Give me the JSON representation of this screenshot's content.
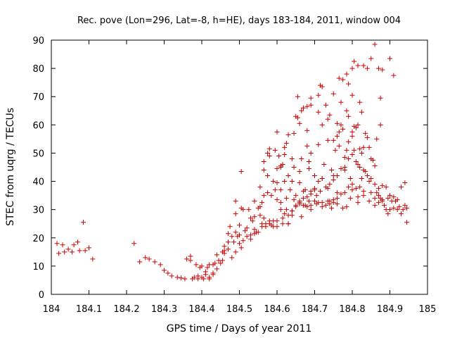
{
  "chart_data": {
    "type": "scatter",
    "title": "Rec. pove (Lon=296, Lat=-8, h=HE), days 183-184, 2011, window 004",
    "xlabel": "GPS time / Days of year 2011",
    "ylabel": "STEC from uqrg / TECUs",
    "xlim": [
      184,
      185
    ],
    "ylim": [
      0,
      90
    ],
    "xticks": [
      "184",
      "184.1",
      "184.2",
      "184.3",
      "184.4",
      "184.5",
      "184.6",
      "184.7",
      "184.8",
      "184.9",
      "185"
    ],
    "yticks": [
      "0",
      "10",
      "20",
      "30",
      "40",
      "50",
      "60",
      "70",
      "80",
      "90"
    ],
    "grid": false,
    "legend": "none",
    "marker": "+",
    "color": "#cc0000",
    "points": [
      [
        184.015,
        18
      ],
      [
        184.02,
        14.5
      ],
      [
        184.03,
        17.5
      ],
      [
        184.035,
        15
      ],
      [
        184.045,
        16
      ],
      [
        184.055,
        15
      ],
      [
        184.06,
        17.5
      ],
      [
        184.07,
        18.5
      ],
      [
        184.075,
        15.5
      ],
      [
        184.085,
        25.5
      ],
      [
        184.09,
        15.5
      ],
      [
        184.1,
        16.5
      ],
      [
        184.11,
        12.5
      ],
      [
        184.22,
        18
      ],
      [
        184.235,
        11.5
      ],
      [
        184.25,
        13
      ],
      [
        184.26,
        12.5
      ],
      [
        184.275,
        11.5
      ],
      [
        184.29,
        10.5
      ],
      [
        184.3,
        8.5
      ],
      [
        184.31,
        7.5
      ],
      [
        184.32,
        6.5
      ],
      [
        184.335,
        6
      ],
      [
        184.345,
        5.8
      ],
      [
        184.355,
        5.5
      ],
      [
        184.36,
        12.5
      ],
      [
        184.37,
        12
      ],
      [
        184.37,
        13.5
      ],
      [
        184.375,
        5.5
      ],
      [
        184.385,
        10.5
      ],
      [
        184.39,
        5.5
      ],
      [
        184.395,
        9.5
      ],
      [
        184.4,
        10
      ],
      [
        184.405,
        5.5
      ],
      [
        184.41,
        8
      ],
      [
        184.415,
        9.5
      ],
      [
        184.42,
        10.5
      ],
      [
        184.42,
        6
      ],
      [
        184.43,
        7.5
      ],
      [
        184.43,
        10.5
      ],
      [
        184.435,
        11
      ],
      [
        184.44,
        14
      ],
      [
        184.445,
        12
      ],
      [
        184.455,
        12
      ],
      [
        184.455,
        15
      ],
      [
        184.46,
        17
      ],
      [
        184.46,
        15.5
      ],
      [
        184.47,
        18.5
      ],
      [
        184.47,
        21.5
      ],
      [
        184.475,
        24
      ],
      [
        184.48,
        20.5
      ],
      [
        184.485,
        18.5
      ],
      [
        184.49,
        22
      ],
      [
        184.49,
        28.5
      ],
      [
        184.49,
        33
      ],
      [
        184.495,
        20.5
      ],
      [
        184.5,
        21
      ],
      [
        184.5,
        24.5
      ],
      [
        184.505,
        16.5
      ],
      [
        184.505,
        30.5
      ],
      [
        184.505,
        43.5
      ],
      [
        184.51,
        30
      ],
      [
        184.515,
        22.5
      ],
      [
        184.52,
        23.5
      ],
      [
        184.525,
        30
      ],
      [
        184.53,
        19.5
      ],
      [
        184.53,
        27
      ],
      [
        184.535,
        26
      ],
      [
        184.54,
        21.5
      ],
      [
        184.54,
        27.5
      ],
      [
        184.545,
        22
      ],
      [
        184.55,
        30.5
      ],
      [
        184.555,
        28
      ],
      [
        184.56,
        24
      ],
      [
        184.56,
        32.5
      ],
      [
        184.565,
        35
      ],
      [
        184.565,
        44
      ],
      [
        184.565,
        47
      ],
      [
        184.57,
        25
      ],
      [
        184.575,
        36
      ],
      [
        184.575,
        50
      ],
      [
        184.58,
        49
      ],
      [
        184.58,
        51.5
      ],
      [
        184.585,
        24.5
      ],
      [
        184.585,
        35
      ],
      [
        184.59,
        40
      ],
      [
        184.595,
        37
      ],
      [
        184.595,
        51
      ],
      [
        184.6,
        24
      ],
      [
        184.6,
        33.5
      ],
      [
        184.6,
        39.5
      ],
      [
        184.6,
        44.5
      ],
      [
        184.6,
        57.5
      ],
      [
        184.605,
        49
      ],
      [
        184.61,
        32.5
      ],
      [
        184.61,
        37
      ],
      [
        184.61,
        45.5
      ],
      [
        184.615,
        25
      ],
      [
        184.615,
        46
      ],
      [
        184.62,
        40
      ],
      [
        184.62,
        52
      ],
      [
        184.625,
        30
      ],
      [
        184.625,
        34
      ],
      [
        184.625,
        53.5
      ],
      [
        184.63,
        25
      ],
      [
        184.63,
        42
      ],
      [
        184.635,
        37
      ],
      [
        184.64,
        29.5
      ],
      [
        184.64,
        40
      ],
      [
        184.64,
        48
      ],
      [
        184.645,
        33.5
      ],
      [
        184.645,
        45
      ],
      [
        184.65,
        35
      ],
      [
        184.65,
        63
      ],
      [
        184.655,
        62.5
      ],
      [
        184.655,
        70
      ],
      [
        184.66,
        32
      ],
      [
        184.66,
        39.5
      ],
      [
        184.66,
        43.5
      ],
      [
        184.665,
        27.5
      ],
      [
        184.665,
        48
      ],
      [
        184.665,
        65
      ],
      [
        184.67,
        36.5
      ],
      [
        184.675,
        31.5
      ],
      [
        184.675,
        37
      ],
      [
        184.68,
        52.5
      ],
      [
        184.68,
        58
      ],
      [
        184.685,
        33
      ],
      [
        184.685,
        44.5
      ],
      [
        184.685,
        47
      ],
      [
        184.69,
        30
      ],
      [
        184.69,
        35.5
      ],
      [
        184.69,
        50
      ],
      [
        184.69,
        69.5
      ],
      [
        184.7,
        42
      ],
      [
        184.7,
        37
      ],
      [
        184.705,
        35
      ],
      [
        184.705,
        32
      ],
      [
        184.71,
        53
      ],
      [
        184.71,
        64.5
      ],
      [
        184.715,
        36.5
      ],
      [
        184.715,
        74
      ],
      [
        184.72,
        32.5
      ],
      [
        184.72,
        41
      ],
      [
        184.72,
        60
      ],
      [
        184.725,
        46
      ],
      [
        184.73,
        67
      ],
      [
        184.735,
        33
      ],
      [
        184.735,
        37.5
      ],
      [
        184.735,
        54.5
      ],
      [
        184.735,
        62
      ],
      [
        184.74,
        63.5
      ],
      [
        184.745,
        30.5
      ],
      [
        184.745,
        44
      ],
      [
        184.75,
        32.5
      ],
      [
        184.75,
        42
      ],
      [
        184.75,
        54.5
      ],
      [
        184.755,
        51
      ],
      [
        184.76,
        32
      ],
      [
        184.76,
        36
      ],
      [
        184.76,
        56
      ],
      [
        184.765,
        52.5
      ],
      [
        184.765,
        57.5
      ],
      [
        184.765,
        76.5
      ],
      [
        184.77,
        60
      ],
      [
        184.77,
        68
      ],
      [
        184.775,
        30.5
      ],
      [
        184.775,
        58.5
      ],
      [
        184.78,
        44
      ],
      [
        184.78,
        48.5
      ],
      [
        184.785,
        31
      ],
      [
        184.785,
        51
      ],
      [
        184.785,
        65
      ],
      [
        184.79,
        54
      ],
      [
        184.79,
        63
      ],
      [
        184.795,
        34
      ],
      [
        184.795,
        41
      ],
      [
        184.8,
        39
      ],
      [
        184.8,
        56
      ],
      [
        184.8,
        57.5
      ],
      [
        184.805,
        51
      ],
      [
        184.805,
        59.5
      ],
      [
        184.81,
        37.5
      ],
      [
        184.81,
        59
      ],
      [
        184.815,
        32.5
      ],
      [
        184.815,
        46
      ],
      [
        184.815,
        60
      ],
      [
        184.82,
        38
      ],
      [
        184.82,
        51.5
      ],
      [
        184.825,
        41
      ],
      [
        184.825,
        50
      ],
      [
        184.825,
        64.5
      ],
      [
        184.83,
        36.5
      ],
      [
        184.83,
        52
      ],
      [
        184.835,
        43.5
      ],
      [
        184.835,
        57
      ],
      [
        184.84,
        55.5
      ],
      [
        184.845,
        40
      ],
      [
        184.845,
        52
      ],
      [
        184.85,
        36
      ],
      [
        184.85,
        48
      ],
      [
        184.855,
        47.5
      ],
      [
        184.86,
        34
      ],
      [
        184.86,
        45.5
      ],
      [
        184.865,
        36
      ],
      [
        184.865,
        55
      ],
      [
        184.87,
        32.5
      ],
      [
        184.87,
        35
      ],
      [
        184.875,
        34
      ],
      [
        184.875,
        60
      ],
      [
        184.88,
        33.5
      ],
      [
        184.885,
        31.5
      ],
      [
        184.89,
        30
      ],
      [
        184.895,
        34
      ],
      [
        184.9,
        30
      ],
      [
        184.905,
        33
      ],
      [
        184.91,
        30.5
      ],
      [
        184.915,
        33
      ],
      [
        184.92,
        30
      ],
      [
        184.925,
        31
      ],
      [
        184.93,
        28.5
      ],
      [
        184.935,
        30
      ],
      [
        184.94,
        31.5
      ],
      [
        184.945,
        30.5
      ],
      [
        184.74,
        33
      ],
      [
        184.75,
        71
      ],
      [
        184.76,
        60.5
      ],
      [
        184.775,
        76
      ],
      [
        184.785,
        78
      ],
      [
        184.8,
        80
      ],
      [
        184.805,
        82.5
      ],
      [
        184.815,
        81
      ],
      [
        184.83,
        81
      ],
      [
        184.84,
        80
      ],
      [
        184.85,
        83.5
      ],
      [
        184.86,
        88.5
      ],
      [
        184.87,
        80
      ],
      [
        184.88,
        79.5
      ],
      [
        184.9,
        83.5
      ],
      [
        184.91,
        77.5
      ],
      [
        184.875,
        69.5
      ],
      [
        184.82,
        68
      ],
      [
        184.8,
        70.5
      ],
      [
        184.79,
        74.5
      ],
      [
        184.72,
        73.5
      ],
      [
        184.71,
        70.5
      ],
      [
        184.69,
        67
      ],
      [
        184.68,
        66.5
      ],
      [
        184.67,
        66
      ],
      [
        184.66,
        60.5
      ],
      [
        184.645,
        57
      ],
      [
        184.63,
        56.5
      ],
      [
        184.62,
        49.5
      ],
      [
        184.61,
        45
      ],
      [
        184.575,
        42
      ],
      [
        184.555,
        38
      ],
      [
        184.54,
        33
      ],
      [
        184.555,
        31
      ],
      [
        184.565,
        27
      ],
      [
        184.58,
        26
      ],
      [
        184.59,
        24
      ],
      [
        184.6,
        26
      ],
      [
        184.615,
        27
      ],
      [
        184.63,
        28
      ],
      [
        184.64,
        29.5
      ],
      [
        184.65,
        31.5
      ],
      [
        184.66,
        33
      ],
      [
        184.67,
        34
      ],
      [
        184.68,
        34.5
      ],
      [
        184.69,
        36.5
      ],
      [
        184.7,
        37.5
      ],
      [
        184.71,
        40
      ],
      [
        184.72,
        41
      ],
      [
        184.73,
        38
      ],
      [
        184.74,
        39
      ],
      [
        184.75,
        40.5
      ],
      [
        184.76,
        42
      ],
      [
        184.77,
        44.5
      ],
      [
        184.78,
        45
      ],
      [
        184.79,
        48
      ],
      [
        184.8,
        49.5
      ],
      [
        184.81,
        47
      ],
      [
        184.82,
        45
      ],
      [
        184.83,
        44
      ],
      [
        184.84,
        42
      ],
      [
        184.85,
        41
      ],
      [
        184.86,
        39
      ],
      [
        184.87,
        37.5
      ],
      [
        184.88,
        38.5
      ],
      [
        184.89,
        38
      ],
      [
        184.9,
        35
      ],
      [
        184.91,
        34.5
      ],
      [
        184.92,
        33.5
      ],
      [
        184.93,
        38
      ],
      [
        184.94,
        39.5
      ],
      [
        184.945,
        25.5
      ],
      [
        184.895,
        28.5
      ],
      [
        184.88,
        33
      ],
      [
        184.86,
        31.5
      ],
      [
        184.845,
        33
      ],
      [
        184.83,
        35
      ],
      [
        184.815,
        34.5
      ],
      [
        184.8,
        37
      ],
      [
        184.79,
        38
      ],
      [
        184.78,
        36
      ],
      [
        184.77,
        35.5
      ],
      [
        184.76,
        34
      ],
      [
        184.75,
        33.5
      ],
      [
        184.74,
        32
      ],
      [
        184.73,
        31.5
      ],
      [
        184.72,
        31
      ],
      [
        184.71,
        32.5
      ],
      [
        184.7,
        33
      ],
      [
        184.69,
        31.5
      ],
      [
        184.68,
        31
      ],
      [
        184.67,
        31.5
      ],
      [
        184.66,
        32.5
      ],
      [
        184.65,
        31
      ],
      [
        184.64,
        28
      ],
      [
        184.63,
        25
      ],
      [
        184.62,
        28.5
      ],
      [
        184.61,
        30
      ],
      [
        184.59,
        26
      ],
      [
        184.58,
        25
      ],
      [
        184.57,
        24
      ],
      [
        184.56,
        25
      ],
      [
        184.55,
        22
      ],
      [
        184.54,
        23
      ],
      [
        184.53,
        21
      ],
      [
        184.52,
        20.5
      ],
      [
        184.51,
        19
      ],
      [
        184.5,
        18
      ],
      [
        184.49,
        15
      ],
      [
        184.48,
        13
      ],
      [
        184.47,
        16
      ],
      [
        184.46,
        14.5
      ],
      [
        184.45,
        11
      ],
      [
        184.44,
        9
      ],
      [
        184.43,
        7
      ],
      [
        184.42,
        5.5
      ],
      [
        184.41,
        7
      ],
      [
        184.4,
        6
      ],
      [
        184.39,
        6.5
      ],
      [
        184.38,
        6
      ]
    ]
  }
}
